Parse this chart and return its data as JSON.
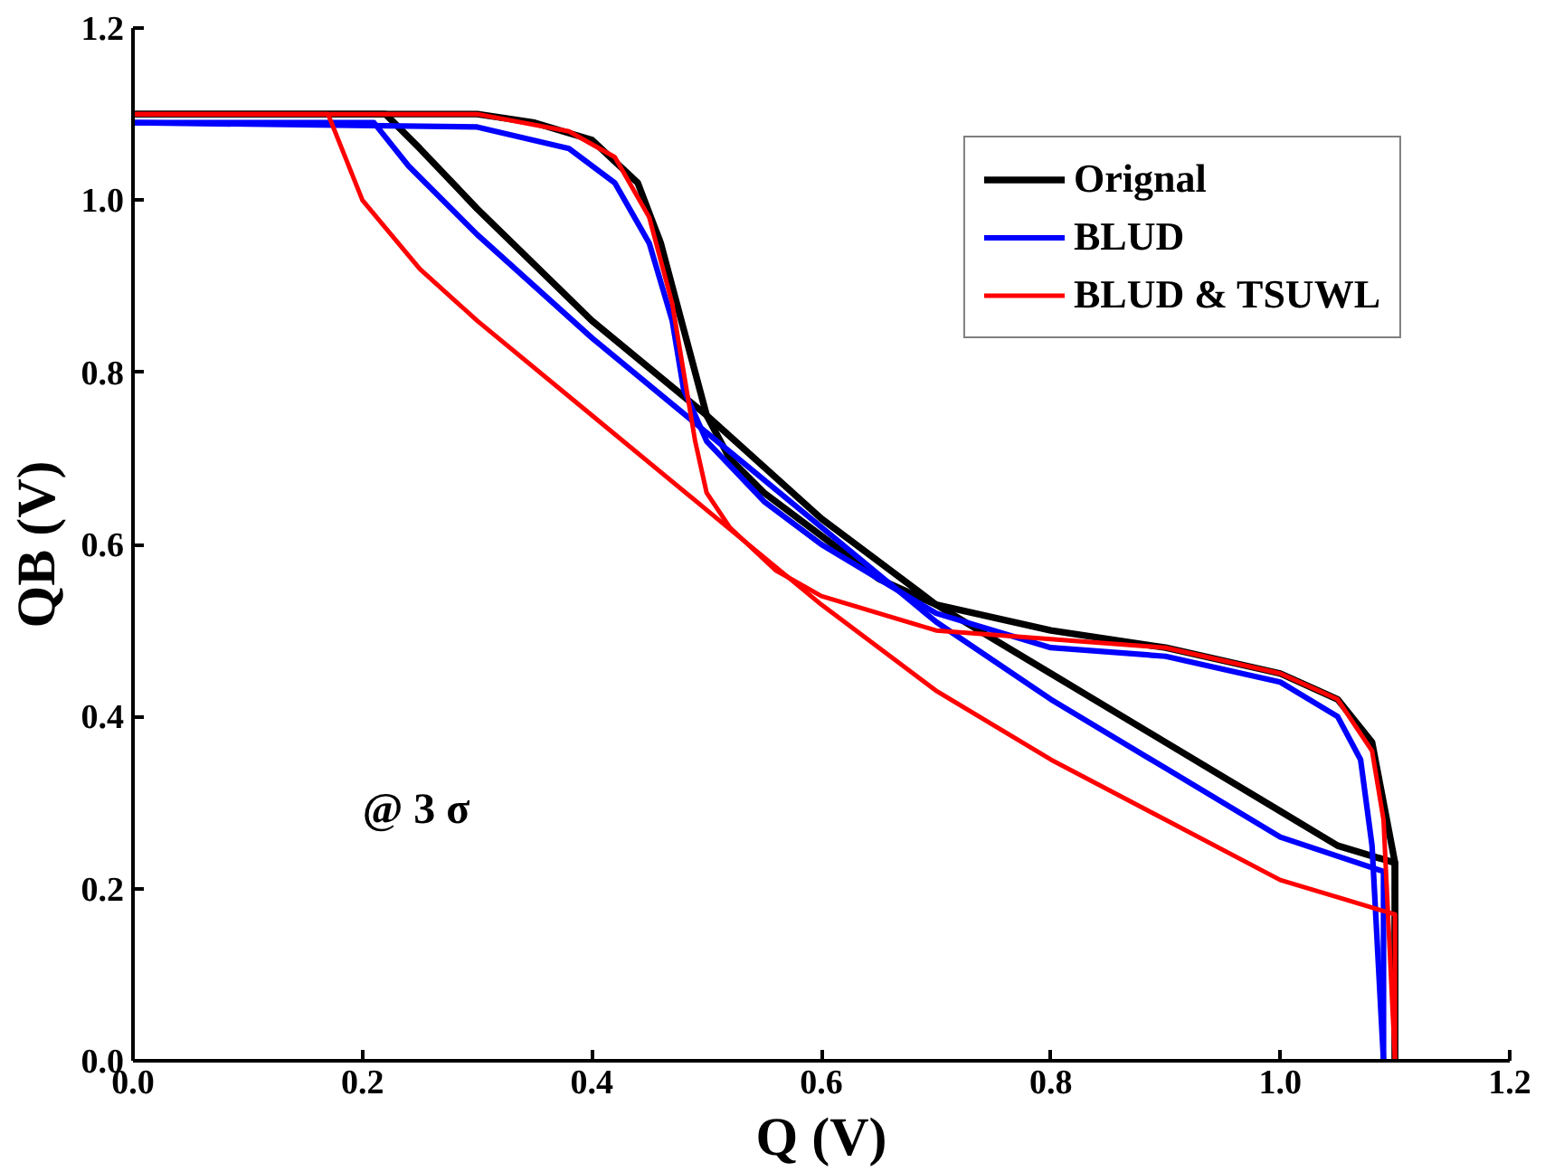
{
  "chart_data": {
    "type": "line",
    "xlabel": "Q (V)",
    "ylabel": "QB (V)",
    "xlim": [
      0,
      1.2
    ],
    "ylim": [
      0,
      1.2
    ],
    "xticks": [
      {
        "value": 0,
        "label": "0.0"
      },
      {
        "value": 0.2,
        "label": "0.2"
      },
      {
        "value": 0.4,
        "label": "0.4"
      },
      {
        "value": 0.6,
        "label": "0.6"
      },
      {
        "value": 0.8,
        "label": "0.8"
      },
      {
        "value": 1.0,
        "label": "1.0"
      },
      {
        "value": 1.2,
        "label": "1.2"
      }
    ],
    "yticks": [
      {
        "value": 0,
        "label": "0.0"
      },
      {
        "value": 0.2,
        "label": "0.2"
      },
      {
        "value": 0.4,
        "label": "0.4"
      },
      {
        "value": 0.6,
        "label": "0.6"
      },
      {
        "value": 0.8,
        "label": "0.8"
      },
      {
        "value": 1.0,
        "label": "1.0"
      },
      {
        "value": 1.2,
        "label": "1.2"
      }
    ],
    "grid": false,
    "legend": "top right",
    "marker": "none",
    "line_style": "solid",
    "annotations": [
      "@  3 σ"
    ],
    "series": [
      {
        "name": "Orignal",
        "color": "#000000",
        "x": [
          0,
          0.3,
          0.35,
          0.4,
          0.44,
          0.46,
          0.48,
          0.5,
          0.52,
          0.55,
          0.6,
          0.65,
          0.7,
          0.8,
          0.9,
          1.0,
          1.05,
          1.08,
          1.09,
          1.1,
          1.1
        ],
        "values": [
          1.1,
          1.1,
          1.09,
          1.07,
          1.02,
          0.95,
          0.85,
          0.75,
          0.7,
          0.66,
          0.61,
          0.56,
          0.53,
          0.5,
          0.48,
          0.45,
          0.42,
          0.37,
          0.3,
          0.23,
          0
        ]
      },
      {
        "color": "#000000",
        "x": [
          0,
          0.22,
          0.25,
          0.3,
          0.4,
          0.5,
          0.6,
          0.7,
          0.8,
          0.9,
          1.0,
          1.05,
          1.1,
          1.1
        ],
        "values": [
          1.1,
          1.1,
          1.06,
          0.99,
          0.86,
          0.75,
          0.63,
          0.53,
          0.45,
          0.37,
          0.29,
          0.25,
          0.23,
          0
        ]
      },
      {
        "name": "BLUD",
        "color": "#0000ff",
        "x": [
          0,
          0.3,
          0.38,
          0.42,
          0.45,
          0.47,
          0.48,
          0.5,
          0.55,
          0.6,
          0.7,
          0.8,
          0.9,
          1.0,
          1.05,
          1.07,
          1.08,
          1.09
        ],
        "values": [
          1.09,
          1.085,
          1.06,
          1.02,
          0.95,
          0.86,
          0.78,
          0.72,
          0.65,
          0.6,
          0.52,
          0.48,
          0.47,
          0.44,
          0.4,
          0.35,
          0.25,
          0
        ]
      },
      {
        "color": "#0000ff",
        "x": [
          0,
          0.21,
          0.24,
          0.3,
          0.4,
          0.5,
          0.6,
          0.7,
          0.8,
          0.9,
          1.0,
          1.09,
          1.09
        ],
        "values": [
          1.09,
          1.09,
          1.04,
          0.96,
          0.84,
          0.73,
          0.62,
          0.51,
          0.42,
          0.34,
          0.26,
          0.22,
          0
        ]
      },
      {
        "name": "BLUD & TSUWL",
        "color": "#ff0000",
        "x": [
          0,
          0.3,
          0.38,
          0.42,
          0.45,
          0.47,
          0.48,
          0.49,
          0.5,
          0.52,
          0.56,
          0.6,
          0.7,
          0.8,
          0.9,
          1.0,
          1.05,
          1.08,
          1.09,
          1.1
        ],
        "values": [
          1.1,
          1.1,
          1.08,
          1.05,
          0.98,
          0.88,
          0.8,
          0.72,
          0.66,
          0.62,
          0.57,
          0.54,
          0.5,
          0.49,
          0.48,
          0.45,
          0.42,
          0.36,
          0.28,
          0
        ]
      },
      {
        "color": "#ff0000",
        "x": [
          0,
          0.17,
          0.2,
          0.25,
          0.3,
          0.4,
          0.5,
          0.6,
          0.7,
          0.8,
          0.9,
          1.0,
          1.05,
          1.1,
          1.1
        ],
        "values": [
          1.1,
          1.1,
          1.0,
          0.92,
          0.86,
          0.75,
          0.64,
          0.53,
          0.43,
          0.35,
          0.28,
          0.21,
          0.19,
          0.17,
          0
        ]
      }
    ]
  }
}
